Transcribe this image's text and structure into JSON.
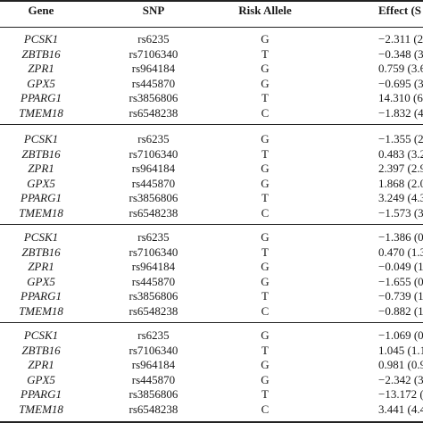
{
  "header": {
    "gene": "Gene",
    "snp": "SNP",
    "risk_allele": "Risk Allele",
    "effect": "Effect (S"
  },
  "blocks": [
    {
      "rows": [
        {
          "gene": "PCSK1",
          "snp": "rs6235",
          "allele": "G",
          "effect": "−2.311 (2."
        },
        {
          "gene": "ZBTB16",
          "snp": "rs7106340",
          "allele": "T",
          "effect": "−0.348 (3."
        },
        {
          "gene": "ZPR1",
          "snp": "rs964184",
          "allele": "G",
          "effect": "0.759 (3.6"
        },
        {
          "gene": "GPX5",
          "snp": "rs445870",
          "allele": "G",
          "effect": "−0.695 (3."
        },
        {
          "gene": "PPARG1",
          "snp": "rs3856806",
          "allele": "T",
          "effect": "14.310 (6."
        },
        {
          "gene": "TMEM18",
          "snp": "rs6548238",
          "allele": "C",
          "effect": "−1.832 (4."
        }
      ]
    },
    {
      "rows": [
        {
          "gene": "PCSK1",
          "snp": "rs6235",
          "allele": "G",
          "effect": "−1.355 (2."
        },
        {
          "gene": "ZBTB16",
          "snp": "rs7106340",
          "allele": "T",
          "effect": "0.483 (3.2"
        },
        {
          "gene": "ZPR1",
          "snp": "rs964184",
          "allele": "G",
          "effect": "2.397 (2.9"
        },
        {
          "gene": "GPX5",
          "snp": "rs445870",
          "allele": "G",
          "effect": "1.868 (2.0"
        },
        {
          "gene": "PPARG1",
          "snp": "rs3856806",
          "allele": "T",
          "effect": "3.249 (4.3"
        },
        {
          "gene": "TMEM18",
          "snp": "rs6548238",
          "allele": "C",
          "effect": "−1.573 (3."
        }
      ]
    },
    {
      "rows": [
        {
          "gene": "PCSK1",
          "snp": "rs6235",
          "allele": "G",
          "effect": "−1.386 (0."
        },
        {
          "gene": "ZBTB16",
          "snp": "rs7106340",
          "allele": "T",
          "effect": "0.470 (1.3"
        },
        {
          "gene": "ZPR1",
          "snp": "rs964184",
          "allele": "G",
          "effect": "−0.049 (1."
        },
        {
          "gene": "GPX5",
          "snp": "rs445870",
          "allele": "G",
          "effect": "−1.655 (0."
        },
        {
          "gene": "PPARG1",
          "snp": "rs3856806",
          "allele": "T",
          "effect": "−0.739 (1."
        },
        {
          "gene": "TMEM18",
          "snp": "rs6548238",
          "allele": "C",
          "effect": "−0.882 (1."
        }
      ]
    },
    {
      "rows": [
        {
          "gene": "PCSK1",
          "snp": "rs6235",
          "allele": "G",
          "effect": "−1.069 (0."
        },
        {
          "gene": "ZBTB16",
          "snp": "rs7106340",
          "allele": "T",
          "effect": "1.045 (1.1"
        },
        {
          "gene": "ZPR1",
          "snp": "rs964184",
          "allele": "G",
          "effect": "0.981 (0.9"
        },
        {
          "gene": "GPX5",
          "snp": "rs445870",
          "allele": "G",
          "effect": "−2.342 (3."
        },
        {
          "gene": "PPARG1",
          "snp": "rs3856806",
          "allele": "T",
          "effect": "−13.172 (6"
        },
        {
          "gene": "TMEM18",
          "snp": "rs6548238",
          "allele": "C",
          "effect": "3.441 (4.4"
        }
      ]
    }
  ]
}
